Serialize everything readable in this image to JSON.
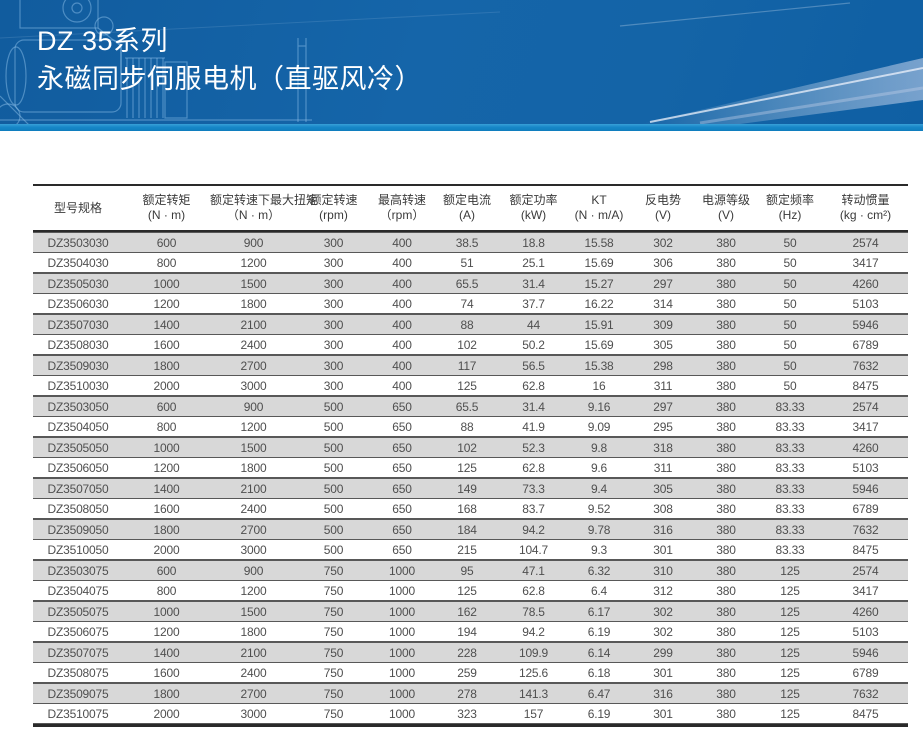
{
  "banner": {
    "title_line1": "DZ 35系列",
    "title_line2": "永磁同步伺服电机（直驱风冷）"
  },
  "colors": {
    "banner_bg": "#1464a7",
    "accent_stripe": "#1787c8",
    "row_alt_bg": "#d8d8d8",
    "table_text": "#4f4f4f",
    "border_dark": "#2a2a2a",
    "title_text": "#ffffff"
  },
  "table": {
    "columns": [
      {
        "label": "型号规格",
        "unit": ""
      },
      {
        "label": "额定转矩",
        "unit": "(N · m)"
      },
      {
        "label": "额定转速下最大扭矩",
        "unit": "（N · m）"
      },
      {
        "label": "额定转速",
        "unit": "(rpm)"
      },
      {
        "label": "最高转速",
        "unit": "（rpm）"
      },
      {
        "label": "额定电流",
        "unit": "(A)"
      },
      {
        "label": "额定功率",
        "unit": "(kW)"
      },
      {
        "label": "KT",
        "unit": "(N · m/A)"
      },
      {
        "label": "反电势",
        "unit": "(V)"
      },
      {
        "label": "电源等级",
        "unit": "(V)"
      },
      {
        "label": "额定频率",
        "unit": "(Hz)"
      },
      {
        "label": "转动惯量",
        "unit": "(kg · cm²)"
      }
    ],
    "rows": [
      [
        "DZ3503030",
        "600",
        "900",
        "300",
        "400",
        "38.5",
        "18.8",
        "15.58",
        "302",
        "380",
        "50",
        "2574"
      ],
      [
        "DZ3504030",
        "800",
        "1200",
        "300",
        "400",
        "51",
        "25.1",
        "15.69",
        "306",
        "380",
        "50",
        "3417"
      ],
      [
        "DZ3505030",
        "1000",
        "1500",
        "300",
        "400",
        "65.5",
        "31.4",
        "15.27",
        "297",
        "380",
        "50",
        "4260"
      ],
      [
        "DZ3506030",
        "1200",
        "1800",
        "300",
        "400",
        "74",
        "37.7",
        "16.22",
        "314",
        "380",
        "50",
        "5103"
      ],
      [
        "DZ3507030",
        "1400",
        "2100",
        "300",
        "400",
        "88",
        "44",
        "15.91",
        "309",
        "380",
        "50",
        "5946"
      ],
      [
        "DZ3508030",
        "1600",
        "2400",
        "300",
        "400",
        "102",
        "50.2",
        "15.69",
        "305",
        "380",
        "50",
        "6789"
      ],
      [
        "DZ3509030",
        "1800",
        "2700",
        "300",
        "400",
        "117",
        "56.5",
        "15.38",
        "298",
        "380",
        "50",
        "7632"
      ],
      [
        "DZ3510030",
        "2000",
        "3000",
        "300",
        "400",
        "125",
        "62.8",
        "16",
        "311",
        "380",
        "50",
        "8475"
      ],
      [
        "DZ3503050",
        "600",
        "900",
        "500",
        "650",
        "65.5",
        "31.4",
        "9.16",
        "297",
        "380",
        "83.33",
        "2574"
      ],
      [
        "DZ3504050",
        "800",
        "1200",
        "500",
        "650",
        "88",
        "41.9",
        "9.09",
        "295",
        "380",
        "83.33",
        "3417"
      ],
      [
        "DZ3505050",
        "1000",
        "1500",
        "500",
        "650",
        "102",
        "52.3",
        "9.8",
        "318",
        "380",
        "83.33",
        "4260"
      ],
      [
        "DZ3506050",
        "1200",
        "1800",
        "500",
        "650",
        "125",
        "62.8",
        "9.6",
        "311",
        "380",
        "83.33",
        "5103"
      ],
      [
        "DZ3507050",
        "1400",
        "2100",
        "500",
        "650",
        "149",
        "73.3",
        "9.4",
        "305",
        "380",
        "83.33",
        "5946"
      ],
      [
        "DZ3508050",
        "1600",
        "2400",
        "500",
        "650",
        "168",
        "83.7",
        "9.52",
        "308",
        "380",
        "83.33",
        "6789"
      ],
      [
        "DZ3509050",
        "1800",
        "2700",
        "500",
        "650",
        "184",
        "94.2",
        "9.78",
        "316",
        "380",
        "83.33",
        "7632"
      ],
      [
        "DZ3510050",
        "2000",
        "3000",
        "500",
        "650",
        "215",
        "104.7",
        "9.3",
        "301",
        "380",
        "83.33",
        "8475"
      ],
      [
        "DZ3503075",
        "600",
        "900",
        "750",
        "1000",
        "95",
        "47.1",
        "6.32",
        "310",
        "380",
        "125",
        "2574"
      ],
      [
        "DZ3504075",
        "800",
        "1200",
        "750",
        "1000",
        "125",
        "62.8",
        "6.4",
        "312",
        "380",
        "125",
        "3417"
      ],
      [
        "DZ3505075",
        "1000",
        "1500",
        "750",
        "1000",
        "162",
        "78.5",
        "6.17",
        "302",
        "380",
        "125",
        "4260"
      ],
      [
        "DZ3506075",
        "1200",
        "1800",
        "750",
        "1000",
        "194",
        "94.2",
        "6.19",
        "302",
        "380",
        "125",
        "5103"
      ],
      [
        "DZ3507075",
        "1400",
        "2100",
        "750",
        "1000",
        "228",
        "109.9",
        "6.14",
        "299",
        "380",
        "125",
        "5946"
      ],
      [
        "DZ3508075",
        "1600",
        "2400",
        "750",
        "1000",
        "259",
        "125.6",
        "6.18",
        "301",
        "380",
        "125",
        "6789"
      ],
      [
        "DZ3509075",
        "1800",
        "2700",
        "750",
        "1000",
        "278",
        "141.3",
        "6.47",
        "316",
        "380",
        "125",
        "7632"
      ],
      [
        "DZ3510075",
        "2000",
        "3000",
        "750",
        "1000",
        "323",
        "157",
        "6.19",
        "301",
        "380",
        "125",
        "8475"
      ]
    ]
  }
}
